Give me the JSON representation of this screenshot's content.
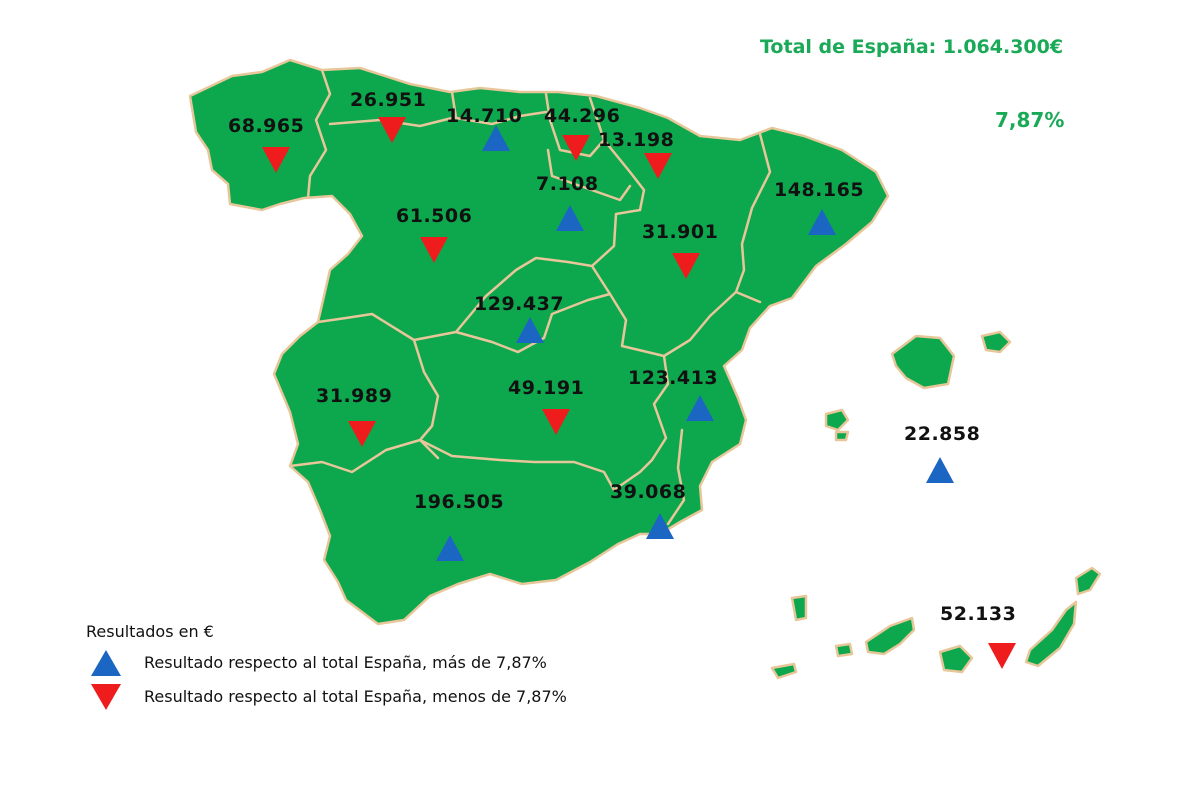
{
  "header": {
    "total_label": "Total de España: 1.064.300€",
    "reference_pct": "7,87%"
  },
  "legend": {
    "title": "Resultados en €",
    "above_label": "Resultado respecto al total España, más de 7,87%",
    "below_label": "Resultado respecto al total España, menos de 7,87%"
  },
  "colors": {
    "land": "#0da74d",
    "border": "#e7c79a",
    "above": "#1a66c2",
    "below": "#ee1c1c",
    "total_text": "#19a957"
  },
  "regions": [
    {
      "id": "galicia",
      "value": "68.965",
      "trend": "below"
    },
    {
      "id": "asturias",
      "value": "26.951",
      "trend": "below"
    },
    {
      "id": "cantabria",
      "value": "14.710",
      "trend": "above"
    },
    {
      "id": "pais-vasco",
      "value": "44.296",
      "trend": "below"
    },
    {
      "id": "navarra",
      "value": "13.198",
      "trend": "below"
    },
    {
      "id": "la-rioja",
      "value": "7.108",
      "trend": "above"
    },
    {
      "id": "castilla-y-leon",
      "value": "61.506",
      "trend": "below"
    },
    {
      "id": "aragon",
      "value": "31.901",
      "trend": "below"
    },
    {
      "id": "cataluna",
      "value": "148.165",
      "trend": "above"
    },
    {
      "id": "madrid",
      "value": "129.437",
      "trend": "above"
    },
    {
      "id": "extremadura",
      "value": "31.989",
      "trend": "below"
    },
    {
      "id": "castilla-la-mancha",
      "value": "49.191",
      "trend": "below"
    },
    {
      "id": "comunidad-valenciana",
      "value": "123.413",
      "trend": "above"
    },
    {
      "id": "baleares",
      "value": "22.858",
      "trend": "above"
    },
    {
      "id": "andalucia",
      "value": "196.505",
      "trend": "above"
    },
    {
      "id": "murcia",
      "value": "39.068",
      "trend": "above"
    },
    {
      "id": "canarias",
      "value": "52.133",
      "trend": "below"
    }
  ]
}
